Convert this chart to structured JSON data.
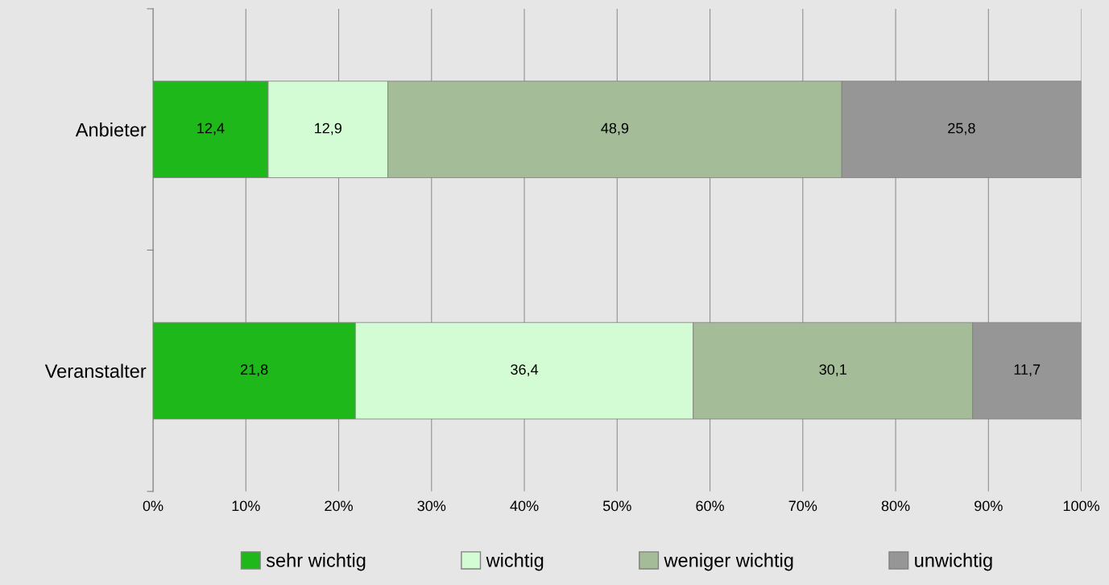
{
  "chart_data": {
    "type": "bar",
    "orientation": "horizontal",
    "stacked": true,
    "categories": [
      "Anbieter",
      "Veranstalter"
    ],
    "series": [
      {
        "name": "sehr wichtig",
        "color": "#1fb81a",
        "values": [
          12.4,
          21.8
        ],
        "value_labels": [
          "12,4",
          "21,8"
        ]
      },
      {
        "name": "wichtig",
        "color": "#d4fcd4",
        "values": [
          12.9,
          36.4
        ],
        "value_labels": [
          "12,9",
          "36,4"
        ]
      },
      {
        "name": "weniger wichtig",
        "color": "#a4bc98",
        "values": [
          48.9,
          30.1
        ],
        "value_labels": [
          "48,9",
          "30,1"
        ]
      },
      {
        "name": "unwichtig",
        "color": "#969696",
        "values": [
          25.8,
          11.7
        ],
        "value_labels": [
          "25,8",
          "11,7"
        ]
      }
    ],
    "xlim": [
      0,
      100
    ],
    "xticks": [
      {
        "value": 0,
        "label": "0%"
      },
      {
        "value": 10,
        "label": "10%"
      },
      {
        "value": 20,
        "label": "20%"
      },
      {
        "value": 30,
        "label": "30%"
      },
      {
        "value": 40,
        "label": "40%"
      },
      {
        "value": 50,
        "label": "50%"
      },
      {
        "value": 60,
        "label": "60%"
      },
      {
        "value": 70,
        "label": "70%"
      },
      {
        "value": 80,
        "label": "80%"
      },
      {
        "value": 90,
        "label": "90%"
      },
      {
        "value": 100,
        "label": "100%"
      }
    ],
    "grid": "x",
    "legend": "bottom"
  }
}
